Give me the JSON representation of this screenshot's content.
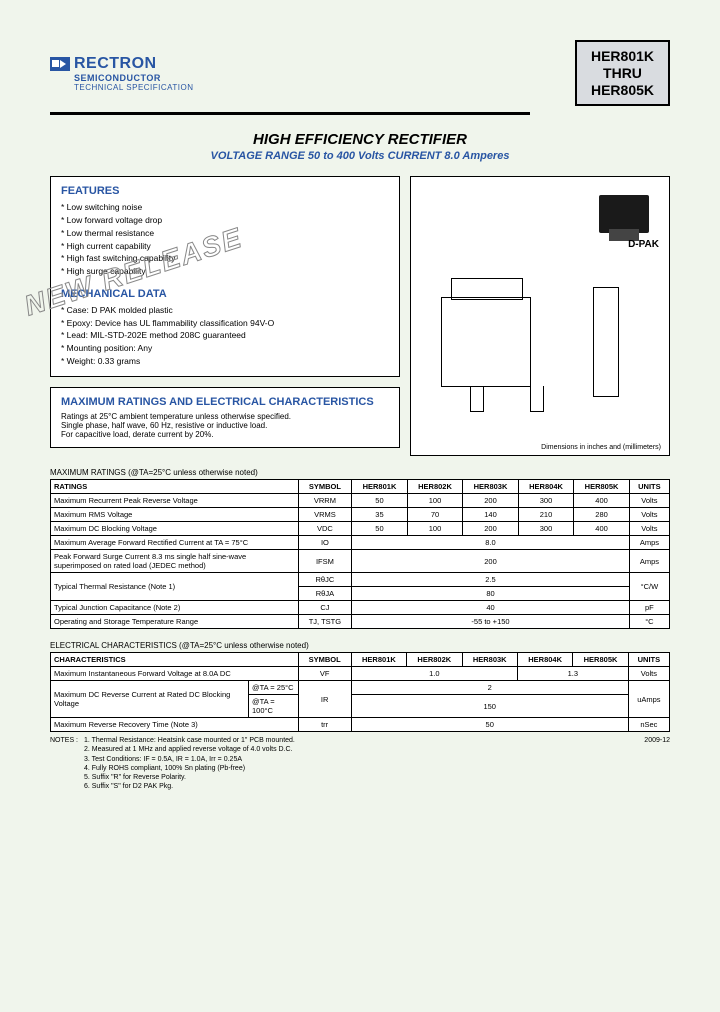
{
  "logo": {
    "name": "RECTRON",
    "sub": "SEMICONDUCTOR",
    "spec": "TECHNICAL SPECIFICATION"
  },
  "partbox": {
    "l1": "HER801K",
    "l2": "THRU",
    "l3": "HER805K"
  },
  "title": "HIGH EFFICIENCY RECTIFIER",
  "subtitle": "VOLTAGE RANGE 50 to 400 Volts   CURRENT 8.0 Amperes",
  "watermark": "NEW RELEASE",
  "features": {
    "heading": "FEATURES",
    "items": [
      "Low switching noise",
      "Low forward voltage drop",
      "Low thermal resistance",
      "High current capability",
      "High fast switching capability",
      "High surge capability"
    ]
  },
  "mech": {
    "heading": "MECHANICAL DATA",
    "items": [
      "Case: D PAK molded plastic",
      "Epoxy: Device has UL flammability classification 94V-O",
      "Lead: MIL-STD-202E method 208C guaranteed",
      "Mounting position: Any",
      "Weight: 0.33 grams"
    ]
  },
  "maxbox": {
    "heading": "MAXIMUM RATINGS AND ELECTRICAL CHARACTERISTICS",
    "body": "Ratings at 25°C ambient temperature unless otherwise specified.\nSingle phase, half wave, 60 Hz, resistive or inductive load.\nFor capacitive load, derate current by 20%."
  },
  "pkg": {
    "label": "D-PAK",
    "dimnote": "Dimensions in inches and (millimeters)"
  },
  "colors": {
    "blue": "#2855a3",
    "bg": "#f0f5ec",
    "boxgrey": "#d9dce0"
  },
  "t1": {
    "caption": "MAXIMUM RATINGS (@TA=25°C unless otherwise noted)",
    "head": [
      "RATINGS",
      "SYMBOL",
      "HER801K",
      "HER802K",
      "HER803K",
      "HER804K",
      "HER805K",
      "UNITS"
    ],
    "rows": [
      {
        "r": "Maximum Recurrent Peak Reverse Voltage",
        "s": "VRRM",
        "v": [
          "50",
          "100",
          "200",
          "300",
          "400"
        ],
        "u": "Volts"
      },
      {
        "r": "Maximum RMS Voltage",
        "s": "VRMS",
        "v": [
          "35",
          "70",
          "140",
          "210",
          "280"
        ],
        "u": "Volts"
      },
      {
        "r": "Maximum DC Blocking Voltage",
        "s": "VDC",
        "v": [
          "50",
          "100",
          "200",
          "300",
          "400"
        ],
        "u": "Volts"
      },
      {
        "r": "Maximum Average Forward Rectified Current at TA = 75°C",
        "s": "IO",
        "span": "8.0",
        "u": "Amps"
      },
      {
        "r": "Peak Forward Surge Current 8.3 ms single half sine-wave superimposed on rated load (JEDEC method)",
        "s": "IFSM",
        "span": "200",
        "u": "Amps"
      },
      {
        "r": "Typical Thermal Resistance (Note 1)",
        "s": "RθJC",
        "span": "2.5",
        "u": "°C/W",
        "twoRow": true,
        "s2": "RθJA",
        "span2": "80"
      },
      {
        "r": "Typical Junction Capacitance (Note 2)",
        "s": "CJ",
        "span": "40",
        "u": "pF"
      },
      {
        "r": "Operating and Storage Temperature Range",
        "s": "TJ, TSTG",
        "span": "-55 to +150",
        "u": "°C"
      }
    ]
  },
  "t2": {
    "caption": "ELECTRICAL CHARACTERISTICS (@TA=25°C unless otherwise noted)",
    "head": [
      "CHARACTERISTICS",
      "SYMBOL",
      "HER801K",
      "HER802K",
      "HER803K",
      "HER804K",
      "HER805K",
      "UNITS"
    ],
    "rows": [
      {
        "r": "Maximum Instantaneous Forward Voltage at 8.0A DC",
        "s": "VF",
        "v": [
          "1.0",
          "",
          "",
          "1.3",
          ""
        ],
        "merge": [
          3,
          2
        ],
        "u": "Volts"
      },
      {
        "r": "Maximum DC Reverse Current at Rated DC Blocking Voltage",
        "sub1": "@TA = 25°C",
        "sub2": "@TA = 100°C",
        "s": "IR",
        "span1": "2",
        "span2": "150",
        "u": "uAmps"
      },
      {
        "r": "Maximum Reverse Recovery Time (Note 3)",
        "s": "trr",
        "span": "50",
        "u": "nSec"
      }
    ]
  },
  "notes": {
    "label": "NOTES :",
    "items": [
      "1. Thermal Resistance: Heatsink case mounted or 1\" PCB mounted.",
      "2. Measured at 1 MHz and applied reverse voltage of 4.0 volts D.C.",
      "3. Test Conditions: IF = 0.5A, IR = 1.0A, Irr = 0.25A",
      "4. Fully ROHS compliant, 100% Sn plating (Pb-free)",
      "5. Suffix \"R\" for Reverse Polarity.",
      "6. Suffix \"S\" for D2 PAK Pkg."
    ],
    "date": "2009-12"
  }
}
